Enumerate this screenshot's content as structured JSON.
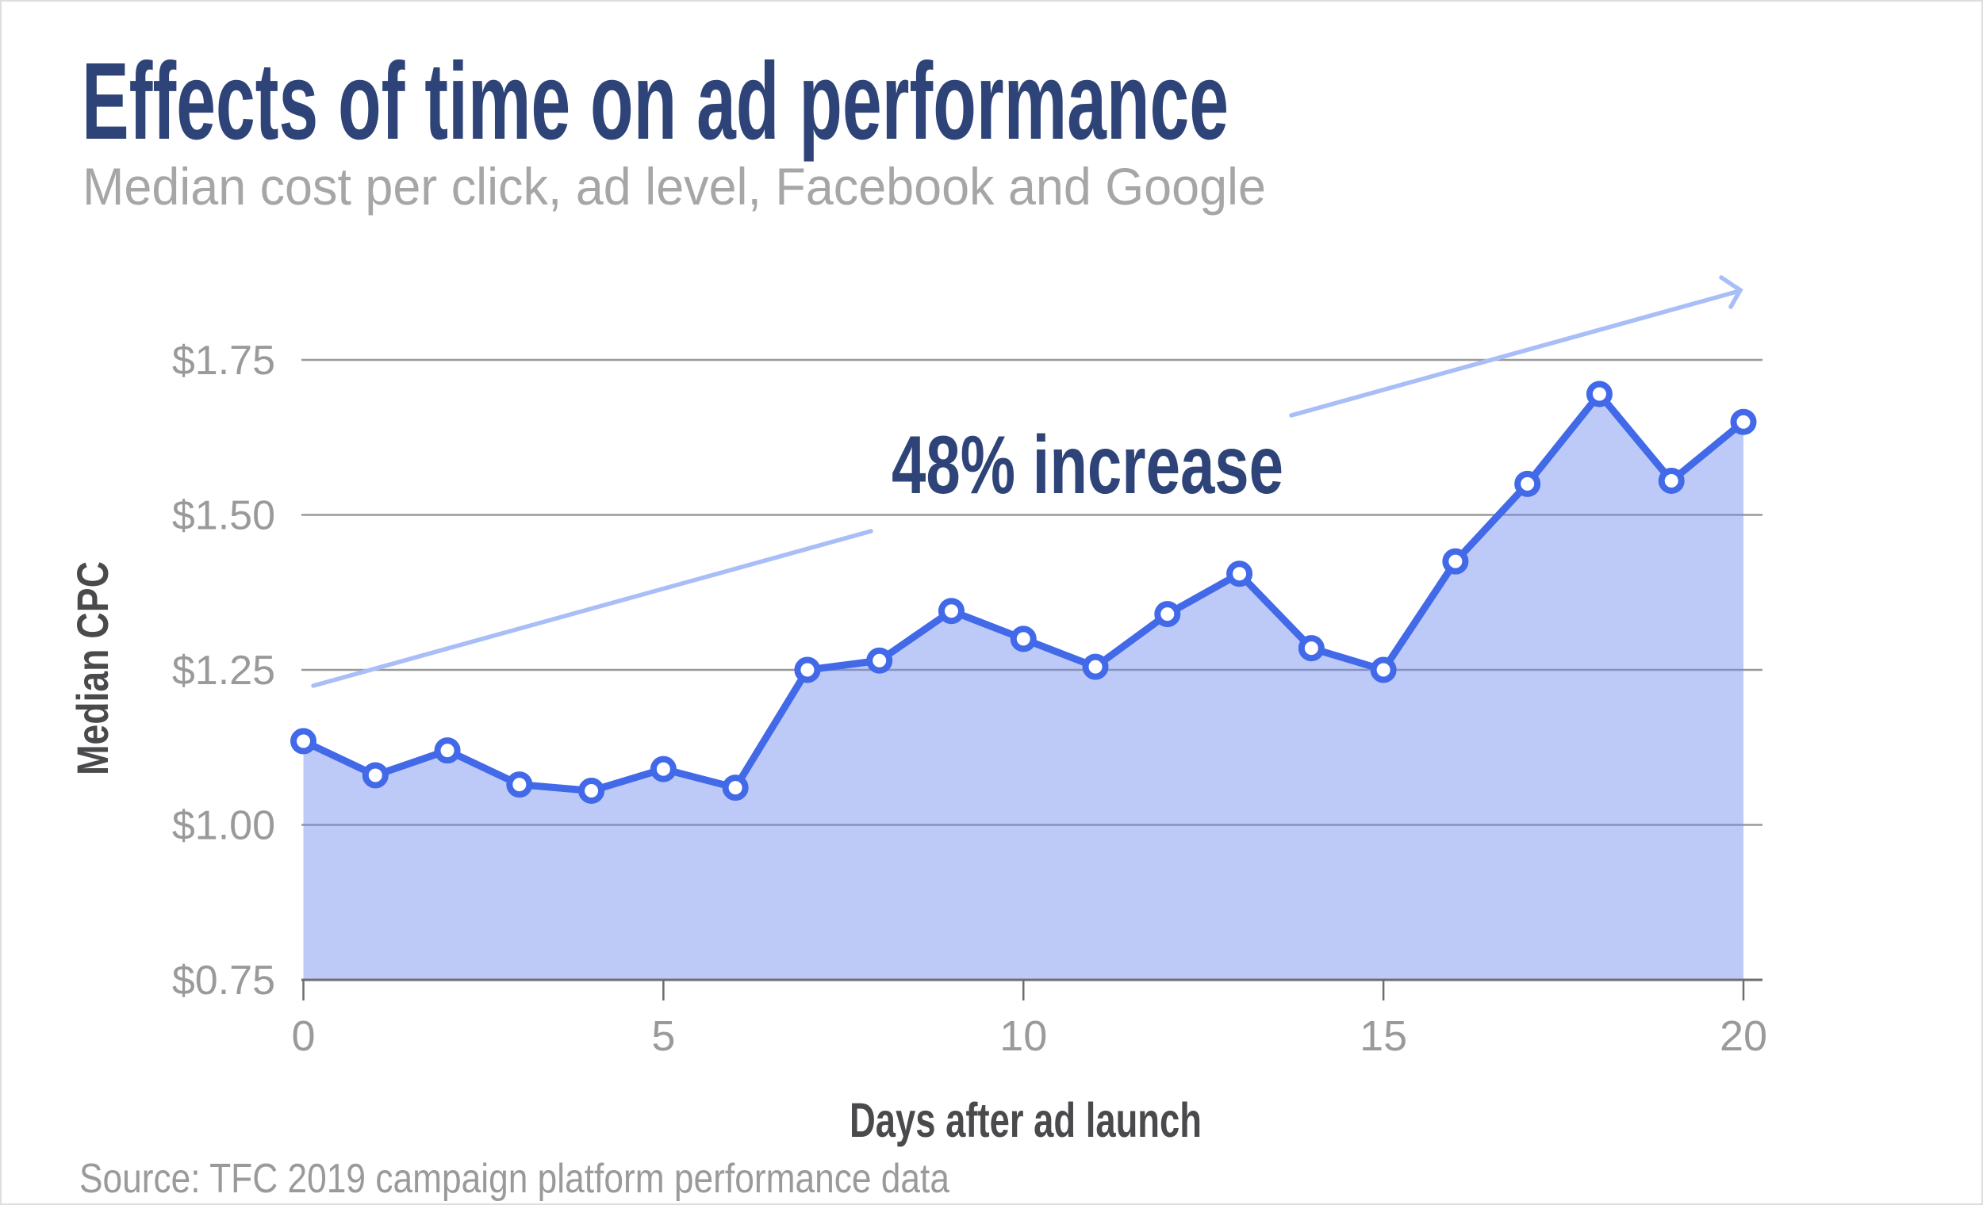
{
  "colors": {
    "title_navy": "#2E4377",
    "subtitle_gray": "#A6A6A6",
    "tick_gray": "#9A9A9A",
    "axis_label_dark": "#4A4A4D",
    "source_gray": "#9A9A9A",
    "gridline": "#999999",
    "axis_line": "#6E6E6E",
    "line_blue": "#4169E8",
    "fill_base": "#6D8AF0",
    "marker_fill": "#FFFFFF",
    "trend_arrow": "#A9BEF8",
    "border_gray": "#DEDEDE"
  },
  "chart_data": {
    "type": "area",
    "title": "Effects of time on ad performance",
    "subtitle": "Median cost per click, ad level, Facebook and Google",
    "xlabel": "Days after ad launch",
    "ylabel": "Median CPC",
    "annotation": "48% increase",
    "source": "Source: TFC 2019 campaign platform performance data",
    "legend": "none",
    "grid": "horizontal",
    "marker_style": "open-circle",
    "trend_arrow": true,
    "xlim": [
      0,
      20
    ],
    "ylim": [
      0.75,
      1.75
    ],
    "x": [
      0,
      1,
      2,
      3,
      4,
      5,
      6,
      7,
      8,
      9,
      10,
      11,
      12,
      13,
      14,
      15,
      16,
      17,
      18,
      19,
      20
    ],
    "values": [
      1.135,
      1.08,
      1.12,
      1.065,
      1.055,
      1.09,
      1.06,
      1.25,
      1.265,
      1.345,
      1.3,
      1.255,
      1.34,
      1.405,
      1.285,
      1.25,
      1.425,
      1.55,
      1.695,
      1.555,
      1.65
    ],
    "xticks": [
      {
        "value": 0,
        "label": "0"
      },
      {
        "value": 5,
        "label": "5"
      },
      {
        "value": 10,
        "label": "10"
      },
      {
        "value": 15,
        "label": "15"
      },
      {
        "value": 20,
        "label": "20"
      }
    ],
    "yticks": [
      {
        "value": 1.75,
        "label": "$1.75"
      },
      {
        "value": 1.5,
        "label": "$1.50"
      },
      {
        "value": 1.25,
        "label": "$1.25"
      },
      {
        "value": 1.0,
        "label": "$1.00"
      },
      {
        "value": 0.75,
        "label": "$0.75"
      }
    ]
  }
}
